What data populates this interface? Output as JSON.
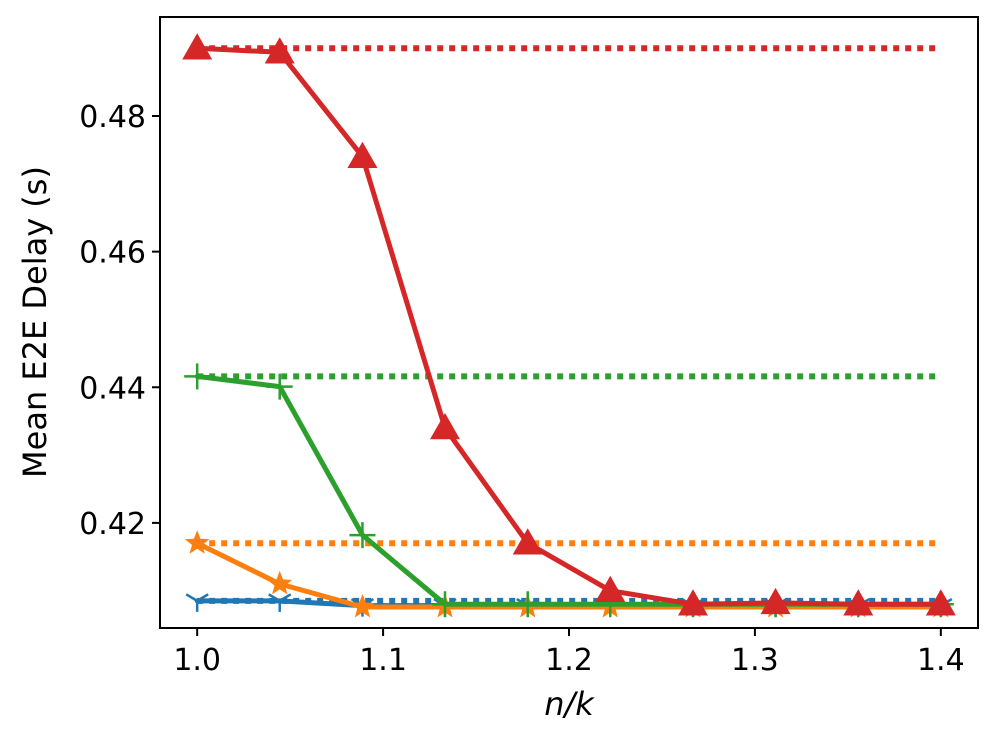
{
  "chart_data": {
    "type": "line",
    "title": "",
    "xlabel": "n/k",
    "ylabel": "Mean E2E Delay (s)",
    "xlim": [
      0.98,
      1.42
    ],
    "ylim": [
      0.4045,
      0.4946
    ],
    "xticks": [
      1.0,
      1.1,
      1.2,
      1.3,
      1.4
    ],
    "xtick_labels": [
      "1.0",
      "1.1",
      "1.2",
      "1.3",
      "1.4"
    ],
    "yticks": [
      0.42,
      0.44,
      0.46,
      0.48
    ],
    "ytick_labels": [
      "0.42",
      "0.44",
      "0.46",
      "0.48"
    ],
    "grid": false,
    "legend": "none",
    "x": [
      1.0,
      1.0444,
      1.0889,
      1.1333,
      1.1778,
      1.2222,
      1.2667,
      1.3111,
      1.3556,
      1.4
    ],
    "series": [
      {
        "color": "#1f77b4",
        "marker": "tri_down",
        "values": [
          0.4085,
          0.4085,
          0.4078,
          0.4078,
          0.4078,
          0.4078,
          0.4078,
          0.4078,
          0.4078,
          0.4078
        ],
        "reference": 0.4085
      },
      {
        "color": "#ff7f0e",
        "marker": "star",
        "values": [
          0.417,
          0.411,
          0.4076,
          0.4076,
          0.4076,
          0.4076,
          0.4076,
          0.4076,
          0.4076,
          0.4076
        ],
        "reference": 0.417
      },
      {
        "color": "#2ca02c",
        "marker": "plus",
        "values": [
          0.4416,
          0.4401,
          0.4182,
          0.408,
          0.408,
          0.408,
          0.408,
          0.408,
          0.408,
          0.408
        ],
        "reference": 0.4416
      },
      {
        "color": "#d62728",
        "marker": "triangle",
        "values": [
          0.49,
          0.4894,
          0.474,
          0.434,
          0.417,
          0.41,
          0.408,
          0.4082,
          0.408,
          0.408
        ],
        "reference": 0.49
      }
    ]
  }
}
